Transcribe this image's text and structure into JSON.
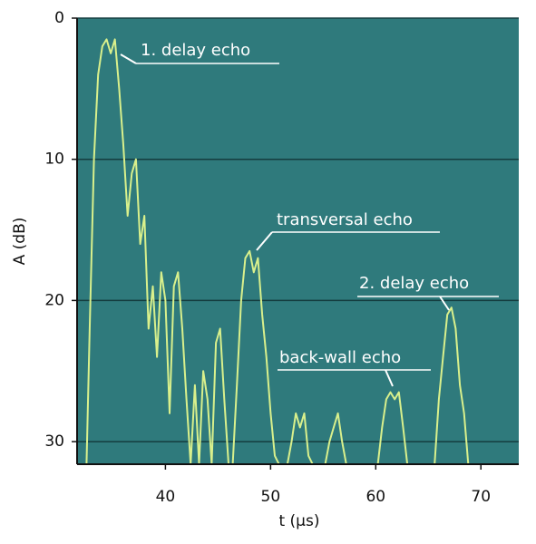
{
  "chart_data": {
    "type": "line",
    "xlabel": "t (µs)",
    "ylabel": "A (dB)",
    "x": [
      32.5,
      32.8,
      33.2,
      33.6,
      34,
      34.4,
      34.8,
      35.2,
      35.6,
      36,
      36.4,
      36.8,
      37.2,
      37.6,
      38,
      38.4,
      38.8,
      39.2,
      39.6,
      40,
      40.4,
      40.8,
      41.2,
      41.6,
      42,
      42.4,
      42.8,
      43.2,
      43.6,
      44,
      44.4,
      44.8,
      45.2,
      45.6,
      46,
      46.4,
      46.8,
      47.2,
      47.6,
      48,
      48.4,
      48.8,
      49.2,
      49.6,
      50,
      50.4,
      50.8,
      51.6,
      52,
      52.4,
      52.8,
      53.2,
      53.6,
      54,
      55.2,
      55.6,
      56,
      56.4,
      56.8,
      57.2,
      60.2,
      60.6,
      61,
      61.4,
      61.8,
      62.2,
      62.6,
      63,
      65.6,
      66,
      66.4,
      66.8,
      67.2,
      67.6,
      68,
      68.4,
      68.8
    ],
    "values": [
      31.6,
      22,
      10,
      4,
      2,
      1.5,
      2.5,
      1.5,
      5,
      9,
      14,
      11,
      10,
      16,
      14,
      22,
      19,
      24,
      18,
      20,
      28,
      19,
      18,
      22,
      27,
      31.6,
      26,
      31.6,
      25,
      27,
      31.6,
      23,
      22,
      27,
      31.6,
      31.6,
      26,
      20,
      17,
      16.5,
      18,
      17,
      21,
      24,
      28,
      31,
      31.6,
      31.6,
      30,
      28,
      29,
      28,
      31,
      31.6,
      31.6,
      30,
      29,
      28,
      30,
      31.6,
      31.6,
      29,
      27,
      26.5,
      27,
      26.5,
      29,
      31.6,
      31.6,
      27,
      24,
      21,
      20.5,
      22,
      26,
      28,
      31.6
    ],
    "color": "#d9f08c",
    "background": "#2f7a7c",
    "xlim": [
      31.6,
      73.6
    ],
    "ylim": [
      0,
      31.6
    ],
    "y_inverted": true,
    "xticks": [
      40,
      50,
      60,
      70
    ],
    "yticks": [
      0,
      10,
      20,
      30
    ],
    "grid": true,
    "annotations": [
      {
        "text": "1. delay echo"
      },
      {
        "text": "transversal echo"
      },
      {
        "text": "2. delay echo"
      },
      {
        "text": "back-wall echo"
      }
    ]
  }
}
